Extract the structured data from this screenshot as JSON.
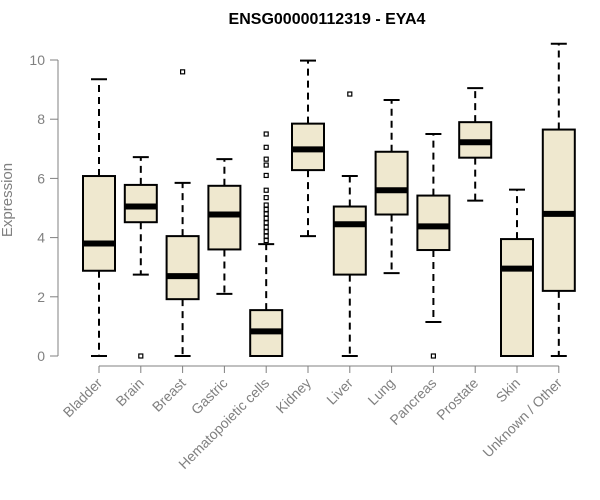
{
  "chart_data": {
    "type": "boxplot",
    "title": "ENSG00000112319 - EYA4",
    "ylabel": "Expression",
    "xlabel": "",
    "ylim": [
      0,
      10.5
    ],
    "yticks": [
      0,
      2,
      4,
      6,
      8,
      10
    ],
    "box_fill": "#efe8cf",
    "box_stroke": "#000000",
    "axis_color": "#808080",
    "categories": [
      "Bladder",
      "Brain",
      "Breast",
      "Gastric",
      "Hematopoietic cells",
      "Kidney",
      "Liver",
      "Lung",
      "Pancreas",
      "Prostate",
      "Skin",
      "Unknown / Other"
    ],
    "boxes": [
      {
        "min": 0.0,
        "q1": 2.88,
        "median": 3.8,
        "q3": 6.08,
        "max": 9.35,
        "outliers": []
      },
      {
        "min": 2.75,
        "q1": 4.52,
        "median": 5.05,
        "q3": 5.78,
        "max": 6.72,
        "outliers": [
          0.0
        ]
      },
      {
        "min": 0.0,
        "q1": 1.92,
        "median": 2.7,
        "q3": 4.05,
        "max": 5.85,
        "outliers": [
          9.6
        ]
      },
      {
        "min": 2.1,
        "q1": 3.6,
        "median": 4.78,
        "q3": 5.75,
        "max": 6.65,
        "outliers": []
      },
      {
        "min": 0.0,
        "q1": 0.0,
        "median": 0.83,
        "q3": 1.55,
        "max": 3.78,
        "outliers": [
          3.9,
          4.05,
          4.2,
          4.35,
          4.5,
          4.65,
          4.8,
          4.95,
          5.1,
          5.35,
          5.6,
          6.1,
          6.45,
          6.65,
          7.05,
          7.5
        ]
      },
      {
        "min": 4.05,
        "q1": 6.28,
        "median": 6.98,
        "q3": 7.85,
        "max": 9.98,
        "outliers": []
      },
      {
        "min": 0.0,
        "q1": 2.75,
        "median": 4.45,
        "q3": 5.05,
        "max": 6.08,
        "outliers": [
          8.85
        ]
      },
      {
        "min": 2.8,
        "q1": 4.78,
        "median": 5.6,
        "q3": 6.9,
        "max": 8.65,
        "outliers": []
      },
      {
        "min": 1.15,
        "q1": 3.58,
        "median": 4.38,
        "q3": 5.42,
        "max": 7.5,
        "outliers": [
          0.0
        ]
      },
      {
        "min": 5.25,
        "q1": 6.7,
        "median": 7.22,
        "q3": 7.9,
        "max": 9.05,
        "outliers": []
      },
      {
        "min": 0.0,
        "q1": 0.0,
        "median": 2.95,
        "q3": 3.95,
        "max": 5.62,
        "outliers": []
      },
      {
        "min": 0.0,
        "q1": 2.2,
        "median": 4.8,
        "q3": 7.65,
        "max": 10.55,
        "outliers": []
      }
    ]
  }
}
